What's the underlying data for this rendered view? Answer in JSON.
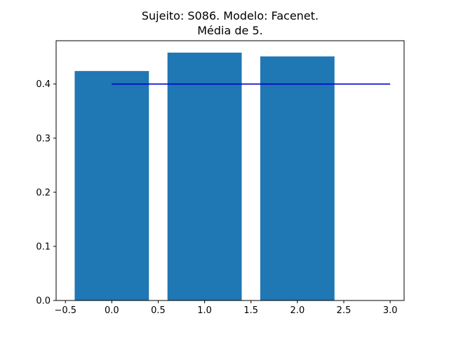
{
  "chart_data": {
    "type": "bar",
    "title_lines": [
      "Sujeito: S086. Modelo: Facenet.",
      "Média de 5."
    ],
    "x": [
      0,
      1,
      2
    ],
    "values": [
      0.424,
      0.458,
      0.451
    ],
    "bar_width": 0.8,
    "bar_color": "#1f77b4",
    "reference_line": {
      "x_start": 0,
      "x_end": 3,
      "y": 0.4,
      "color": "#0000cc"
    },
    "xlim": [
      -0.6,
      3.15
    ],
    "ylim": [
      0,
      0.48
    ],
    "xticks": [
      -0.5,
      0.0,
      0.5,
      1.0,
      1.5,
      2.0,
      2.5,
      3.0
    ],
    "xtick_labels": [
      "−0.5",
      "0.0",
      "0.5",
      "1.0",
      "1.5",
      "2.0",
      "2.5",
      "3.0"
    ],
    "yticks": [
      0.0,
      0.1,
      0.2,
      0.3,
      0.4
    ],
    "ytick_labels": [
      "0.0",
      "0.1",
      "0.2",
      "0.3",
      "0.4"
    ],
    "grid": false,
    "legend": "none"
  }
}
